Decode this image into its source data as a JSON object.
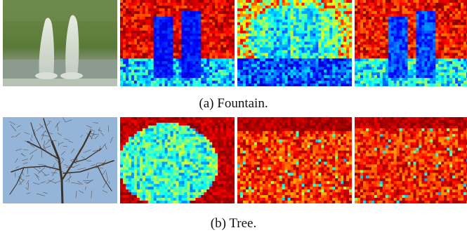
{
  "figure": {
    "subfigures": [
      {
        "caption": "(a) Fountain.",
        "panels": [
          {
            "kind": "photo",
            "subject": "fountain"
          },
          {
            "kind": "heatmap",
            "colormap": "jet"
          },
          {
            "kind": "heatmap",
            "colormap": "jet"
          },
          {
            "kind": "heatmap",
            "colormap": "jet"
          }
        ]
      },
      {
        "caption": "(b) Tree.",
        "panels": [
          {
            "kind": "photo",
            "subject": "tree"
          },
          {
            "kind": "heatmap",
            "colormap": "jet"
          },
          {
            "kind": "heatmap",
            "colormap": "jet"
          },
          {
            "kind": "heatmap",
            "colormap": "jet"
          }
        ]
      }
    ]
  },
  "colors": {
    "fountain_grass": "#5f7d3e",
    "fountain_water": "#8a9a88",
    "tree_sky": "#8fb0d6",
    "tree_branches": "#4a3a30"
  }
}
